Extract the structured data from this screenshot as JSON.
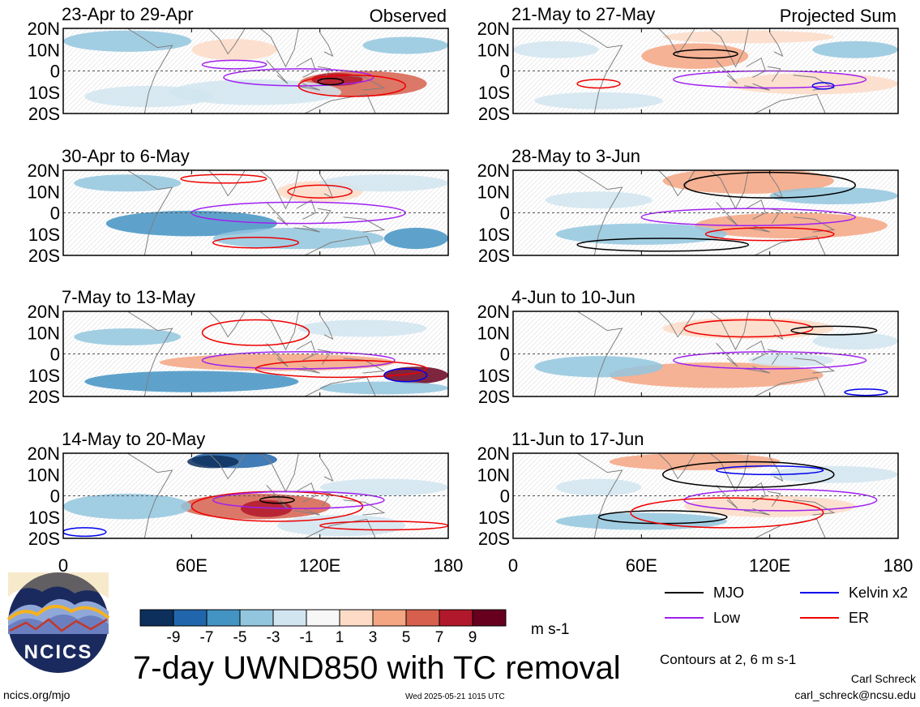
{
  "figure": {
    "title": "7-day UWND850 with TC removal",
    "units": "m s-1",
    "contours_note": "Contours at 2, 6 m s-1",
    "timestamp": "Wed 2025-05-21 1015 UTC",
    "website": "ncics.org/mjo",
    "author": "Carl Schreck",
    "email": "carl_schreck@ncsu.edu",
    "logo_text": "NCICS"
  },
  "columns": {
    "left_label": "Observed",
    "right_label": "Projected Sum"
  },
  "axes": {
    "lat_ticks": [
      "20N",
      "10N",
      "0",
      "10S",
      "20S"
    ],
    "lon_ticks": [
      "0",
      "60E",
      "120E",
      "180"
    ]
  },
  "colorbar": {
    "colors": [
      "#0c2f5c",
      "#2166ac",
      "#4393c3",
      "#92c5de",
      "#d1e5f0",
      "#f7f7f7",
      "#fddbc7",
      "#f4a582",
      "#d6604d",
      "#b2182b",
      "#67001f"
    ],
    "labels": [
      "-9",
      "-7",
      "-5",
      "-3",
      "-1",
      "1",
      "3",
      "5",
      "7",
      "9"
    ]
  },
  "legend": [
    {
      "label": "MJO",
      "color": "#000000"
    },
    {
      "label": "Kelvin x2",
      "color": "#0000ee"
    },
    {
      "label": "Low",
      "color": "#a020f0"
    },
    {
      "label": "ER",
      "color": "#ee0000"
    }
  ],
  "chart_data": {
    "type": "heatmap",
    "variable": "850-hPa zonal wind anomaly",
    "lat_range": [
      -20,
      20
    ],
    "lon_range": [
      0,
      180
    ],
    "panels": [
      {
        "period": "23-Apr to 29-Apr",
        "column": "Observed"
      },
      {
        "period": "30-Apr to 6-May",
        "column": "Observed"
      },
      {
        "period": "7-May to 13-May",
        "column": "Observed"
      },
      {
        "period": "14-May to 20-May",
        "column": "Observed"
      },
      {
        "period": "21-May to 27-May",
        "column": "Projected Sum"
      },
      {
        "period": "28-May to 3-Jun",
        "column": "Projected Sum"
      },
      {
        "period": "4-Jun to 10-Jun",
        "column": "Projected Sum"
      },
      {
        "period": "11-Jun to 17-Jun",
        "column": "Projected Sum"
      }
    ]
  }
}
